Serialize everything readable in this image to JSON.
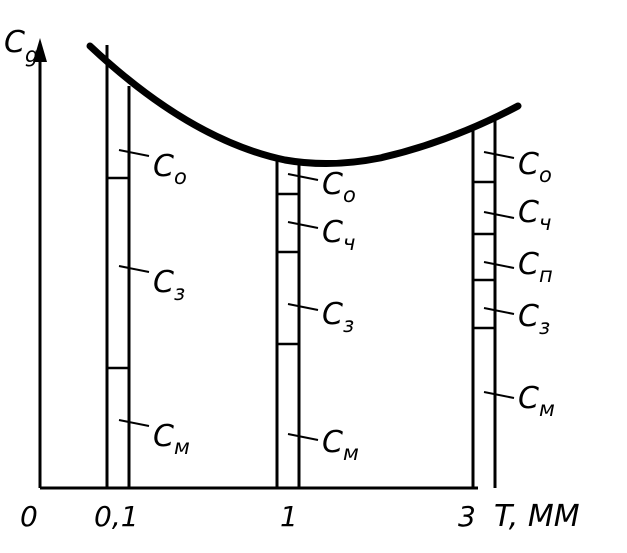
{
  "axes": {
    "y_label": "C",
    "y_sub": "g",
    "x_label": "T, MM",
    "origin": "0",
    "ticks": [
      "0,1",
      "1",
      "3"
    ]
  },
  "columns": [
    {
      "x_label": "0,1",
      "segments": [
        {
          "main": "C",
          "sub": "o"
        },
        {
          "main": "C",
          "sub": "з"
        },
        {
          "main": "C",
          "sub": "м"
        }
      ]
    },
    {
      "x_label": "1",
      "segments": [
        {
          "main": "C",
          "sub": "o"
        },
        {
          "main": "C",
          "sub": "ч"
        },
        {
          "main": "C",
          "sub": "з"
        },
        {
          "main": "C",
          "sub": "м"
        }
      ]
    },
    {
      "x_label": "3",
      "segments": [
        {
          "main": "C",
          "sub": "o"
        },
        {
          "main": "C",
          "sub": "ч"
        },
        {
          "main": "C",
          "sub": "п"
        },
        {
          "main": "C",
          "sub": "з"
        },
        {
          "main": "C",
          "sub": "м"
        }
      ]
    }
  ],
  "colors": {
    "ink": "#000000",
    "background": "#ffffff"
  }
}
